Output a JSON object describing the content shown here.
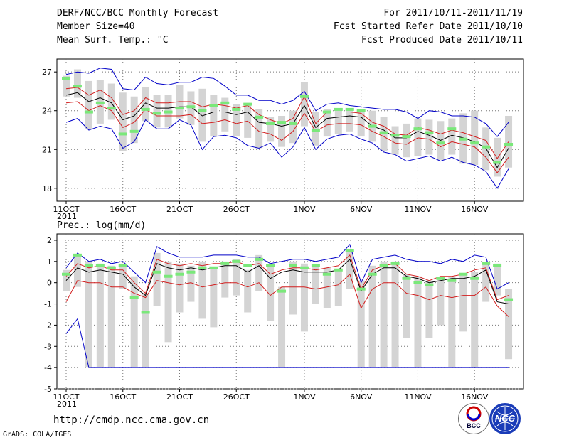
{
  "header": {
    "title": "DERF/NCC/BCC Monthly Forecast",
    "member_size": "Member Size=40",
    "variable": "Mean Surf. Temp.: °C",
    "period": "For 2011/10/11-2011/11/19",
    "started": "Fcst Started Refer Date 2011/10/10",
    "produced": "Fcst Produced Date 2011/10/11"
  },
  "footer": {
    "url": "http://cmdp.ncc.cma.gov.cn",
    "credit": "GrADS: COLA/IGES",
    "logo_bcc": "BCC",
    "logo_ncc": "NCC"
  },
  "colors": {
    "ensemble_mean": "#000000",
    "std_band": "#d21e1e",
    "min_max": "#0000c8",
    "spread_bar": "#d4d4d4",
    "member": "#7ae87a"
  },
  "chart_data": [
    {
      "type": "line",
      "title": "Mean Surf. Temp.: °C",
      "x_tick_labels": [
        "11OCT",
        "16OCT",
        "21OCT",
        "26OCT",
        "1NOV",
        "6NOV",
        "11NOV",
        "16NOV"
      ],
      "x_tick_days": [
        0,
        5,
        10,
        15,
        21,
        26,
        31,
        36
      ],
      "x_sublabel": "2011",
      "ylim": [
        17.0,
        28.0
      ],
      "yticks": [
        18,
        21,
        24,
        27
      ],
      "days": [
        0,
        1,
        2,
        3,
        4,
        5,
        6,
        7,
        8,
        9,
        10,
        11,
        12,
        13,
        14,
        15,
        16,
        17,
        18,
        19,
        20,
        21,
        22,
        23,
        24,
        25,
        26,
        27,
        28,
        29,
        30,
        31,
        32,
        33,
        34,
        35,
        36,
        37,
        38,
        39
      ],
      "series": [
        {
          "name": "max",
          "values": [
            26.8,
            27.0,
            26.9,
            27.3,
            27.2,
            25.7,
            25.6,
            26.6,
            26.1,
            26.0,
            26.2,
            26.2,
            26.6,
            26.5,
            25.9,
            25.2,
            25.2,
            24.8,
            24.8,
            24.5,
            24.8,
            25.5,
            24.0,
            24.5,
            24.6,
            24.4,
            24.3,
            24.2,
            24.1,
            24.1,
            23.9,
            23.4,
            24.0,
            23.9,
            23.6,
            23.6,
            23.5,
            23.0,
            22.0,
            23.1
          ]
        },
        {
          "name": "mean_plus_std",
          "values": [
            25.7,
            25.8,
            25.2,
            25.6,
            25.0,
            23.7,
            24.0,
            25.0,
            24.6,
            24.6,
            24.7,
            24.7,
            24.3,
            24.5,
            24.4,
            24.2,
            24.4,
            23.7,
            23.3,
            23.0,
            23.4,
            25.1,
            23.0,
            23.9,
            23.9,
            23.9,
            23.8,
            23.1,
            22.8,
            22.2,
            22.1,
            22.7,
            22.5,
            22.2,
            22.5,
            22.3,
            22.0,
            21.7,
            20.3,
            21.6
          ]
        },
        {
          "name": "mean",
          "values": [
            25.2,
            25.4,
            24.7,
            25.0,
            24.6,
            23.3,
            23.6,
            24.6,
            24.2,
            24.2,
            24.3,
            24.3,
            23.6,
            23.9,
            23.9,
            23.7,
            23.9,
            23.1,
            23.0,
            22.8,
            23.0,
            24.4,
            22.7,
            23.4,
            23.5,
            23.6,
            23.5,
            22.8,
            22.5,
            21.9,
            21.9,
            22.4,
            22.1,
            21.7,
            22.1,
            21.9,
            21.6,
            21.1,
            19.6,
            21.1
          ]
        },
        {
          "name": "mean_minus_std",
          "values": [
            24.6,
            24.7,
            24.0,
            24.4,
            24.0,
            22.7,
            23.1,
            24.1,
            23.6,
            23.6,
            23.6,
            23.7,
            23.0,
            23.1,
            23.3,
            23.0,
            23.2,
            22.4,
            22.2,
            21.7,
            22.4,
            23.8,
            22.4,
            22.9,
            23.0,
            23.0,
            22.9,
            22.4,
            22.0,
            21.5,
            21.4,
            21.9,
            21.8,
            21.2,
            21.6,
            21.4,
            21.2,
            20.4,
            19.2,
            20.4
          ]
        },
        {
          "name": "min",
          "values": [
            23.1,
            23.4,
            22.5,
            22.8,
            22.6,
            21.1,
            21.6,
            23.3,
            22.6,
            22.6,
            23.3,
            22.9,
            21.0,
            22.0,
            22.1,
            21.9,
            21.3,
            21.1,
            21.5,
            20.4,
            21.2,
            22.7,
            21.0,
            21.8,
            22.1,
            22.2,
            21.8,
            21.5,
            20.8,
            20.6,
            20.1,
            20.3,
            20.5,
            20.1,
            20.4,
            20.0,
            19.8,
            19.3,
            18.0,
            19.5
          ]
        }
      ],
      "spread_bars": [
        [
          25.1,
          26.7
        ],
        [
          25.0,
          27.2
        ],
        [
          22.6,
          26.3
        ],
        [
          23.0,
          26.4
        ],
        [
          23.3,
          26.1
        ],
        [
          20.9,
          25.4
        ],
        [
          21.5,
          25.1
        ],
        [
          23.2,
          25.8
        ],
        [
          22.7,
          25.2
        ],
        [
          22.7,
          25.2
        ],
        [
          23.4,
          26.0
        ],
        [
          22.9,
          25.5
        ],
        [
          21.6,
          25.7
        ],
        [
          22.0,
          25.2
        ],
        [
          22.4,
          25.0
        ],
        [
          22.0,
          24.5
        ],
        [
          21.9,
          24.6
        ],
        [
          21.1,
          24.1
        ],
        [
          21.6,
          23.5
        ],
        [
          21.2,
          23.6
        ],
        [
          21.5,
          24.0
        ],
        [
          22.8,
          26.2
        ],
        [
          21.3,
          23.9
        ],
        [
          22.0,
          24.1
        ],
        [
          22.2,
          24.2
        ],
        [
          22.4,
          24.1
        ],
        [
          22.0,
          24.0
        ],
        [
          21.6,
          24.0
        ],
        [
          20.9,
          23.5
        ],
        [
          20.6,
          22.8
        ],
        [
          20.4,
          23.0
        ],
        [
          20.5,
          23.4
        ],
        [
          20.6,
          23.3
        ],
        [
          20.2,
          23.2
        ],
        [
          20.6,
          23.4
        ],
        [
          19.9,
          23.8
        ],
        [
          19.8,
          24.0
        ],
        [
          19.4,
          22.7
        ],
        [
          18.9,
          21.9
        ],
        [
          19.6,
          23.6
        ]
      ],
      "member_values": [
        26.5,
        25.9,
        23.9,
        24.6,
        24.2,
        22.2,
        22.4,
        24.1,
        23.8,
        23.9,
        24.2,
        24.3,
        24.0,
        24.4,
        24.6,
        24.1,
        24.5,
        23.5,
        23.0,
        23.1,
        23.0,
        25.1,
        22.5,
        23.9,
        24.1,
        24.1,
        24.0,
        22.8,
        22.3,
        22.1,
        22.0,
        22.6,
        22.3,
        21.5,
        22.6,
        21.8,
        21.5,
        21.2,
        20.0,
        21.4
      ]
    },
    {
      "type": "line",
      "title": "Prec.: log(mm/d)",
      "x_tick_labels": [
        "11OCT",
        "16OCT",
        "21OCT",
        "26OCT",
        "1NOV",
        "6NOV",
        "11NOV",
        "16NOV"
      ],
      "x_tick_days": [
        0,
        5,
        10,
        15,
        21,
        26,
        31,
        36
      ],
      "x_sublabel": "2011",
      "ylim": [
        -5,
        2.3
      ],
      "yticks": [
        2,
        1,
        0,
        -1,
        -2,
        -3,
        -4,
        -5
      ],
      "days": [
        0,
        1,
        2,
        3,
        4,
        5,
        6,
        7,
        8,
        9,
        10,
        11,
        12,
        13,
        14,
        15,
        16,
        17,
        18,
        19,
        20,
        21,
        22,
        23,
        24,
        25,
        26,
        27,
        28,
        29,
        30,
        31,
        32,
        33,
        34,
        35,
        36,
        37,
        38,
        39
      ],
      "series": [
        {
          "name": "max",
          "values": [
            0.7,
            1.4,
            1.0,
            1.1,
            0.9,
            1.0,
            0.5,
            0.0,
            1.7,
            1.4,
            1.2,
            1.2,
            1.2,
            1.3,
            1.3,
            1.3,
            1.2,
            1.2,
            0.9,
            1.0,
            1.1,
            1.1,
            1.0,
            1.1,
            1.2,
            1.8,
            0.0,
            1.1,
            1.2,
            1.3,
            1.1,
            1.0,
            1.0,
            0.9,
            1.1,
            1.0,
            1.3,
            1.2,
            -0.3,
            0.0
          ]
        },
        {
          "name": "mean_plus_std",
          "values": [
            0.3,
            0.9,
            0.7,
            0.8,
            0.6,
            0.6,
            0.0,
            -0.5,
            1.1,
            0.9,
            0.8,
            0.9,
            0.8,
            0.9,
            0.9,
            1.0,
            0.8,
            0.9,
            0.4,
            0.6,
            0.7,
            0.7,
            0.6,
            0.7,
            0.8,
            1.3,
            -0.3,
            0.6,
            0.8,
            0.9,
            0.4,
            0.3,
            0.1,
            0.3,
            0.3,
            0.4,
            0.6,
            0.7,
            -0.8,
            -0.6
          ]
        },
        {
          "name": "mean",
          "values": [
            0.1,
            0.7,
            0.5,
            0.6,
            0.5,
            0.4,
            -0.2,
            -0.6,
            0.9,
            0.7,
            0.6,
            0.7,
            0.6,
            0.7,
            0.8,
            0.8,
            0.5,
            0.8,
            0.2,
            0.5,
            0.6,
            0.5,
            0.5,
            0.5,
            0.6,
            1.1,
            -0.4,
            0.4,
            0.7,
            0.7,
            0.3,
            0.2,
            0.0,
            0.1,
            0.2,
            0.2,
            0.3,
            0.6,
            -0.9,
            -1.0
          ]
        },
        {
          "name": "mean_minus_std",
          "values": [
            -0.9,
            0.1,
            0.0,
            0.0,
            -0.2,
            -0.2,
            -0.5,
            -0.7,
            0.1,
            0.0,
            -0.1,
            0.0,
            -0.2,
            -0.1,
            0.0,
            0.0,
            -0.2,
            0.0,
            -0.6,
            -0.2,
            -0.2,
            -0.2,
            -0.3,
            -0.2,
            -0.1,
            0.4,
            -1.2,
            -0.3,
            0.0,
            0.0,
            -0.5,
            -0.6,
            -0.8,
            -0.6,
            -0.7,
            -0.6,
            -0.6,
            -0.2,
            -1.1,
            -1.6
          ]
        },
        {
          "name": "min",
          "values": [
            -2.4,
            -1.7,
            -4.0,
            -4.0,
            -4.0,
            -4.0,
            -4.0,
            -4.0,
            -4.0,
            -4.0,
            -4.0,
            -4.0,
            -4.0,
            -4.0,
            -4.0,
            -4.0,
            -4.0,
            -4.0,
            -4.0,
            -4.0,
            -4.0,
            -4.0,
            -4.0,
            -4.0,
            -4.0,
            -4.0,
            -4.0,
            -4.0,
            -4.0,
            -4.0,
            -4.0,
            -4.0,
            -4.0,
            -4.0,
            -4.0,
            -4.0,
            -4.0,
            -4.0,
            -4.0,
            -4.0
          ]
        }
      ],
      "spread_bars": [
        [
          -0.4,
          0.6
        ],
        [
          -0.2,
          1.3
        ],
        [
          -4.0,
          1.0
        ],
        [
          -4.0,
          0.9
        ],
        [
          -4.0,
          0.8
        ],
        [
          -0.3,
          0.9
        ],
        [
          -4.0,
          0.3
        ],
        [
          -4.0,
          -0.5
        ],
        [
          -1.1,
          1.4
        ],
        [
          -2.8,
          1.0
        ],
        [
          -1.4,
          0.9
        ],
        [
          -0.9,
          0.8
        ],
        [
          -1.7,
          1.0
        ],
        [
          -2.1,
          0.7
        ],
        [
          -0.7,
          1.0
        ],
        [
          -0.6,
          1.1
        ],
        [
          -1.4,
          0.6
        ],
        [
          -0.4,
          1.3
        ],
        [
          -1.8,
          0.8
        ],
        [
          -4.0,
          -0.2
        ],
        [
          -1.5,
          1.0
        ],
        [
          -2.3,
          0.9
        ],
        [
          -1.0,
          0.8
        ],
        [
          -1.2,
          0.7
        ],
        [
          -1.1,
          0.6
        ],
        [
          -0.3,
          1.5
        ],
        [
          -4.0,
          0.1
        ],
        [
          -4.0,
          0.8
        ],
        [
          -4.0,
          1.0
        ],
        [
          -4.0,
          1.0
        ],
        [
          -2.6,
          0.4
        ],
        [
          -4.0,
          0.3
        ],
        [
          -2.6,
          0.1
        ],
        [
          -2.0,
          0.2
        ],
        [
          -4.0,
          0.3
        ],
        [
          -2.3,
          0.4
        ],
        [
          -4.0,
          0.5
        ],
        [
          -0.9,
          0.9
        ],
        [
          -0.6,
          0.9
        ],
        [
          -3.6,
          -0.3
        ]
      ],
      "member_values": [
        0.4,
        1.3,
        0.8,
        0.8,
        0.7,
        0.8,
        -0.7,
        -1.4,
        0.5,
        0.3,
        0.4,
        0.5,
        0.7,
        0.7,
        0.9,
        1.0,
        0.8,
        1.1,
        0.8,
        -0.4,
        0.8,
        0.7,
        0.8,
        0.4,
        0.6,
        1.5,
        -0.3,
        0.4,
        0.8,
        0.9,
        0.2,
        0.0,
        -0.1,
        0.2,
        0.1,
        0.4,
        0.2,
        0.9,
        0.8,
        -0.8
      ]
    }
  ]
}
